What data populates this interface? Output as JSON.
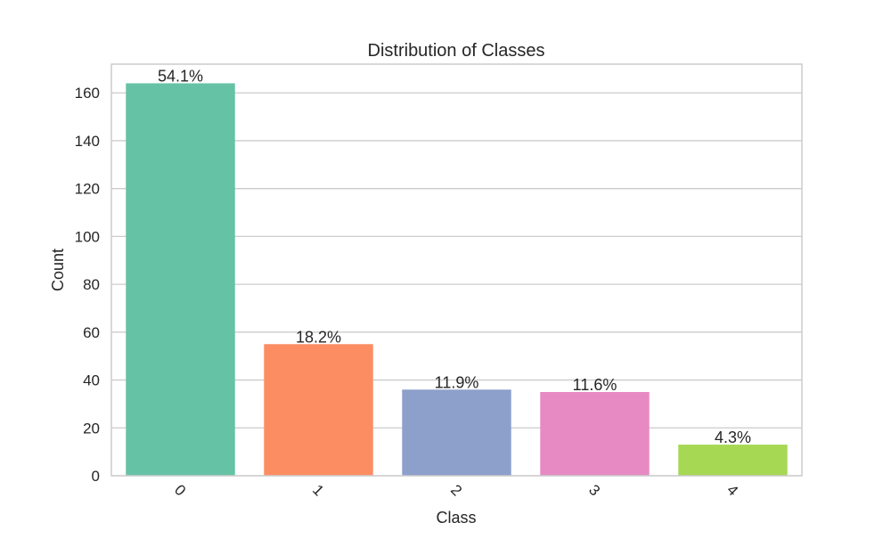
{
  "chart_data": {
    "type": "bar",
    "title": "Distribution of Classes",
    "xlabel": "Class",
    "ylabel": "Count",
    "categories": [
      "0",
      "1",
      "2",
      "3",
      "4"
    ],
    "values": [
      164,
      55,
      36,
      35,
      13
    ],
    "data_labels": [
      "54.1%",
      "18.2%",
      "11.9%",
      "11.6%",
      "4.3%"
    ],
    "colors": [
      "#66c2a5",
      "#fc8d62",
      "#8da0cb",
      "#e78ac3",
      "#a6d854"
    ],
    "ylim": [
      0,
      172
    ],
    "yticks": [
      0,
      20,
      40,
      60,
      80,
      100,
      120,
      140,
      160
    ],
    "grid": true,
    "x_tick_rotation": 45
  }
}
